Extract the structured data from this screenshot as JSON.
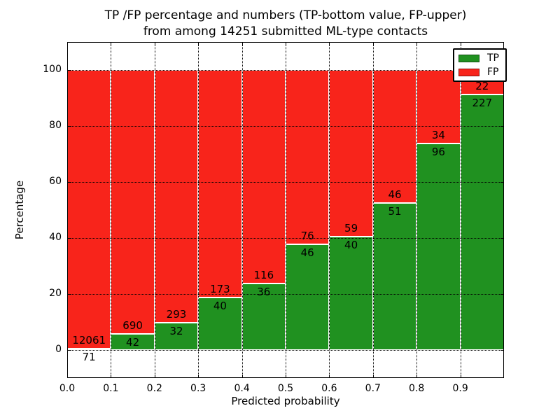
{
  "title": {
    "line1": "TP /FP percentage and numbers (TP-bottom value, FP-upper)",
    "line2": "from among 14251 submitted ML-type contacts"
  },
  "axes": {
    "x_label": "Predicted probability",
    "y_label": "Percentage"
  },
  "colors": {
    "tp": "#209120",
    "fp": "#f8241b",
    "grid": "#000000",
    "bar_edge": "#ffffff"
  },
  "legend": {
    "position": "upper right",
    "entries": [
      {
        "label": "TP",
        "color": "#209120"
      },
      {
        "label": "FP",
        "color": "#f8241b"
      }
    ]
  },
  "chart_data": {
    "type": "bar",
    "stacked": true,
    "normalized": "percent (TP+FP = 100% per bin)",
    "title": "TP /FP percentage and numbers (TP-bottom value, FP-upper) from among 14251 submitted ML-type contacts",
    "xlabel": "Predicted probability",
    "ylabel": "Percentage",
    "total_contacts": 14251,
    "xlim": [
      0.0,
      1.0
    ],
    "ylim": [
      -10,
      110
    ],
    "bin_width": 0.1,
    "bin_starts": [
      0.0,
      0.1,
      0.2,
      0.3,
      0.4,
      0.5,
      0.6,
      0.7,
      0.8,
      0.9
    ],
    "x_ticks": [
      "0.0",
      "0.1",
      "0.2",
      "0.3",
      "0.4",
      "0.5",
      "0.6",
      "0.7",
      "0.8",
      "0.9"
    ],
    "y_ticks": [
      0,
      20,
      40,
      60,
      80,
      100
    ],
    "grid": "dotted, drawn above bars",
    "legend_position": "upper right",
    "series": [
      {
        "name": "TP",
        "color": "#209120",
        "counts": [
          71,
          42,
          32,
          40,
          36,
          46,
          40,
          51,
          96,
          227
        ]
      },
      {
        "name": "FP",
        "color": "#f8241b",
        "counts": [
          12061,
          690,
          293,
          173,
          116,
          76,
          59,
          46,
          34,
          22
        ]
      }
    ],
    "tp_percent_per_bin": [
      0.585,
      5.738,
      9.846,
      18.779,
      23.684,
      37.705,
      40.404,
      52.577,
      73.846,
      91.165
    ]
  }
}
